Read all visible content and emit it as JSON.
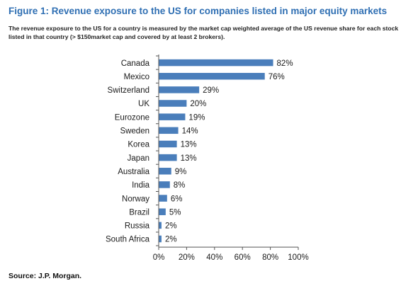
{
  "figure": {
    "title": "Figure 1: Revenue exposure to the US for companies listed in major equity markets",
    "subtitle": "The revenue exposure to the US for a country is measured by the market cap weighted average of the US revenue share for each stock listed in that country (> $150market cap and covered by at least 2 brokers).",
    "source": "Source: J.P. Morgan."
  },
  "chart_data": {
    "type": "bar",
    "orientation": "horizontal",
    "categories": [
      "Canada",
      "Mexico",
      "Switzerland",
      "UK",
      "Eurozone",
      "Sweden",
      "Korea",
      "Japan",
      "Australia",
      "India",
      "Norway",
      "Brazil",
      "Russia",
      "South Africa"
    ],
    "values": [
      82,
      76,
      29,
      20,
      19,
      14,
      13,
      13,
      9,
      8,
      6,
      5,
      2,
      2
    ],
    "value_labels": [
      "82%",
      "76%",
      "29%",
      "20%",
      "19%",
      "14%",
      "13%",
      "13%",
      "9%",
      "8%",
      "6%",
      "5%",
      "2%",
      "2%"
    ],
    "xlim": [
      0,
      100
    ],
    "x_ticks": [
      0,
      20,
      40,
      60,
      80,
      100
    ],
    "x_tick_labels": [
      "0%",
      "20%",
      "40%",
      "60%",
      "80%",
      "100%"
    ],
    "xlabel": "",
    "ylabel": "",
    "grid": false,
    "legend": "none",
    "bar_color": "#4a7ebb",
    "axis_color": "#555555"
  }
}
